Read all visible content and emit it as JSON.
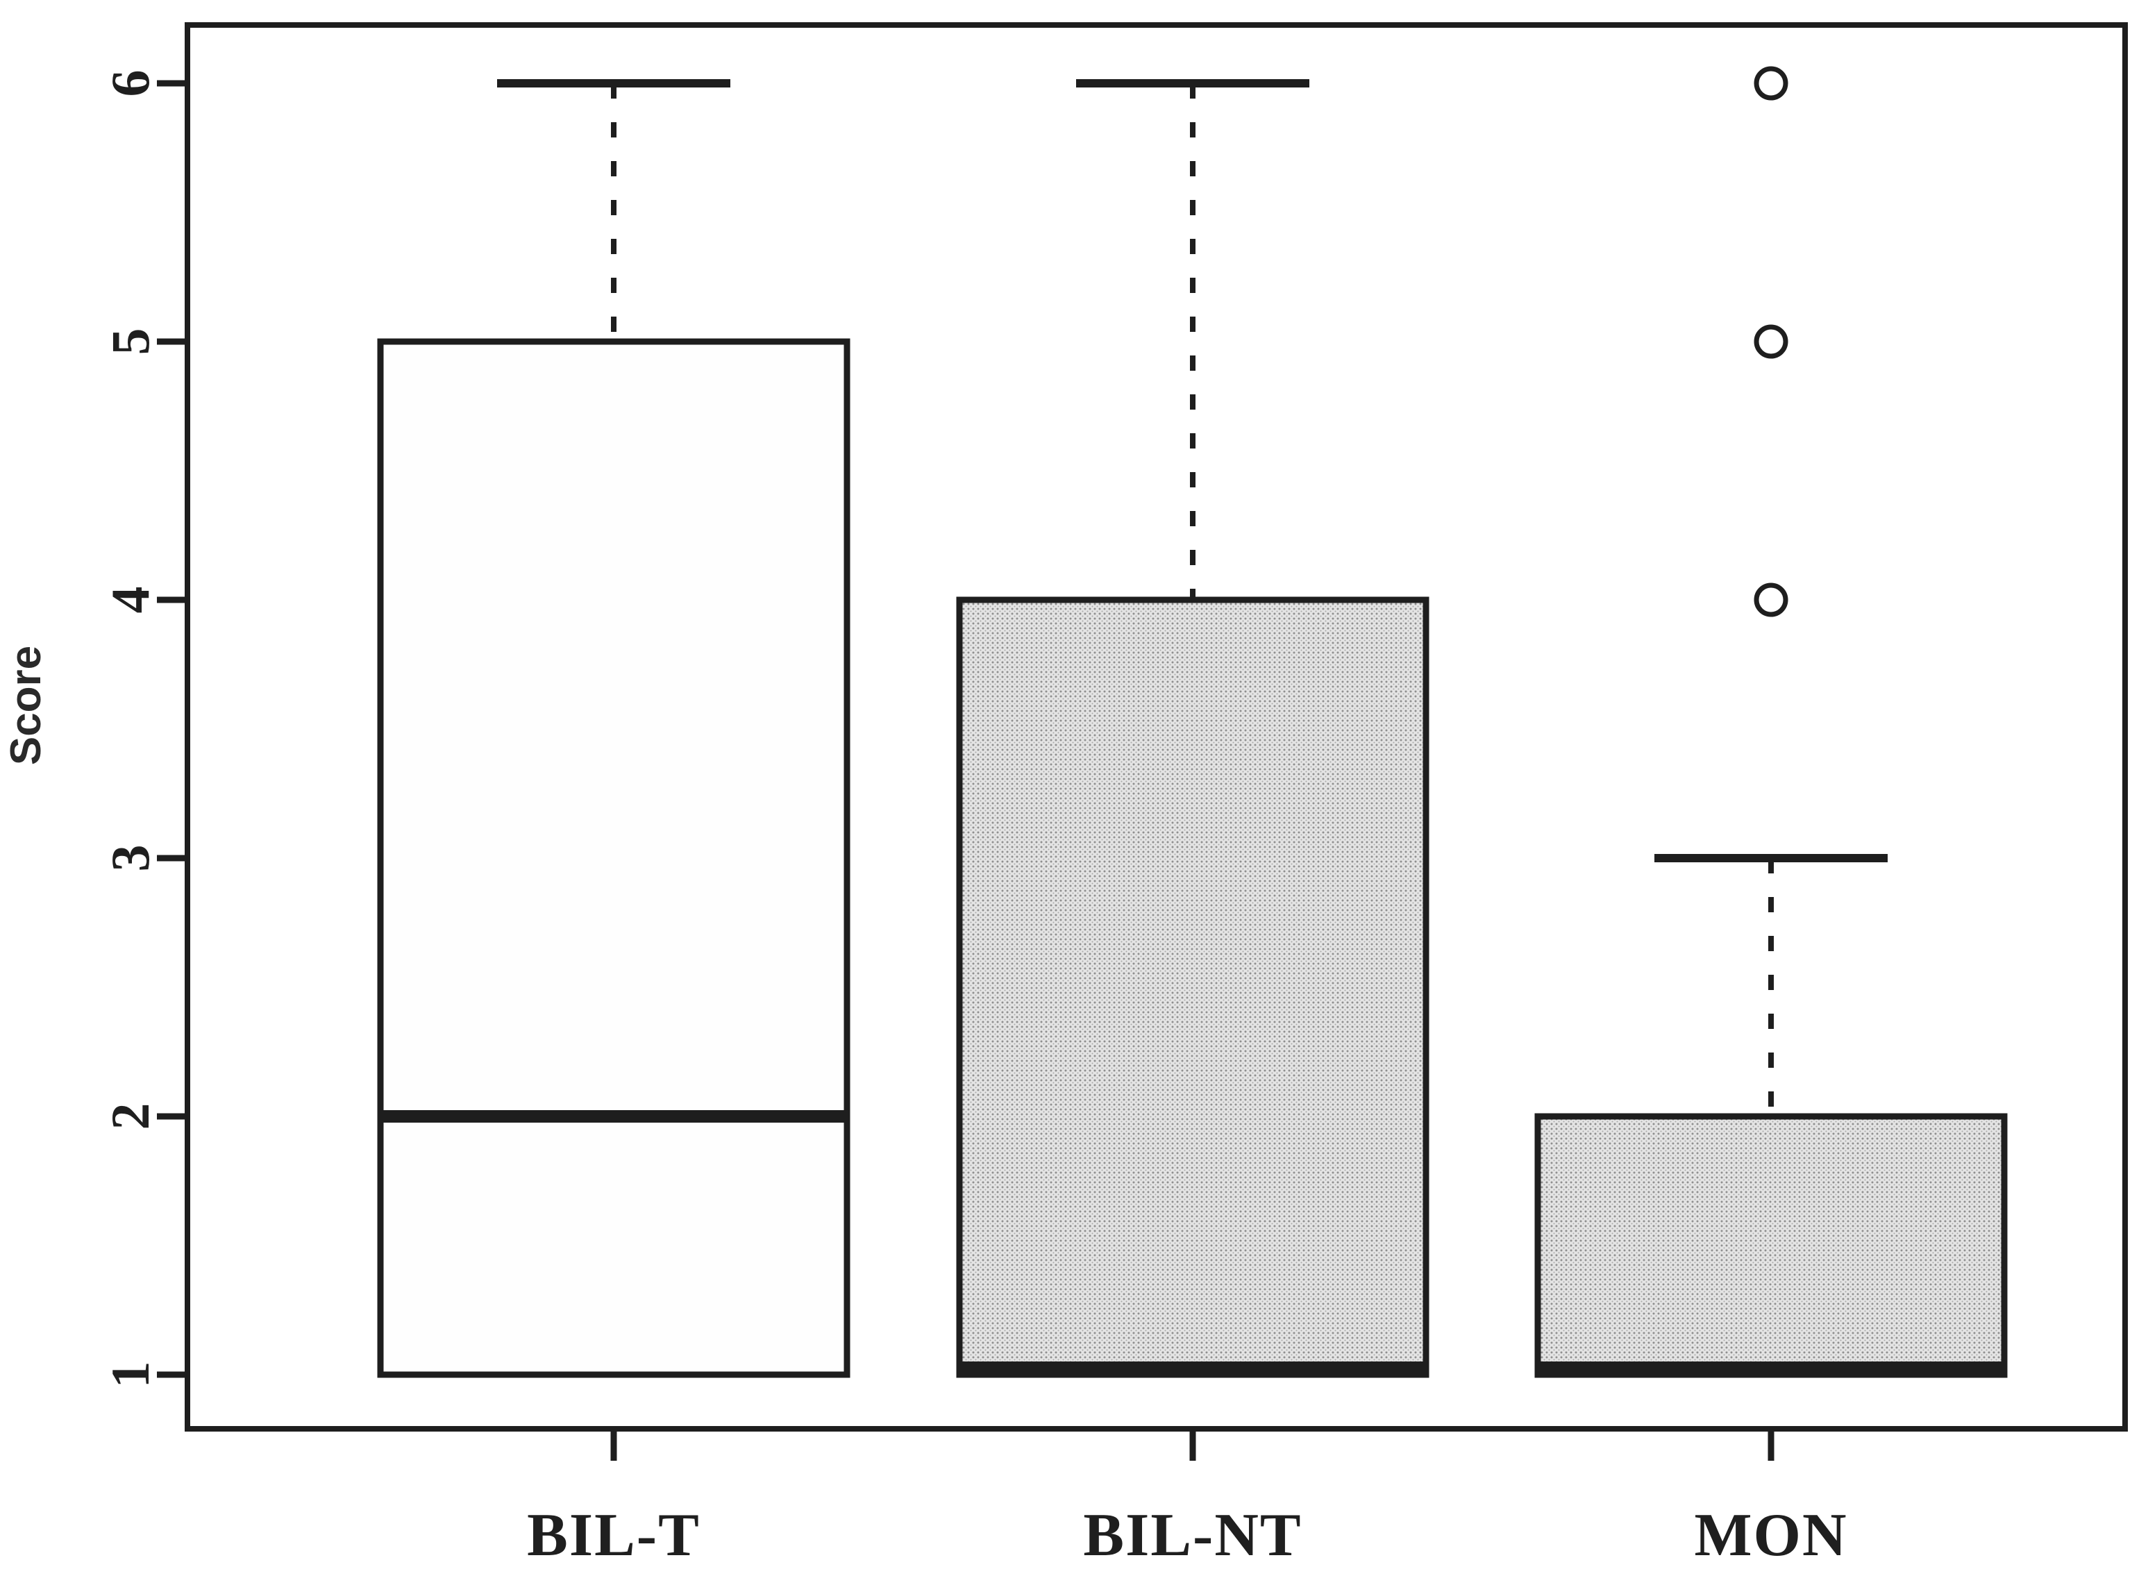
{
  "figure": {
    "background": "#ffffff",
    "line_color": "#1e1e1e",
    "gray_fill_base": "#e4e4e4",
    "gray_fill_dot": "#8f8f8f",
    "white_fill": "#fefefe"
  },
  "chart_data": {
    "type": "box",
    "title": "",
    "ylabel": "Score",
    "xlabel": "",
    "categories": [
      "BIL-T",
      "BIL-NT",
      "MON"
    ],
    "y_ticks": [
      1,
      2,
      3,
      4,
      5,
      6
    ],
    "ylim": [
      1,
      6
    ],
    "grid": false,
    "legend": "none",
    "box_style": "R-default, open whisker caps, dashed whiskers, hatched gray fill on BIL-NT and MON",
    "series": [
      {
        "name": "BIL-T",
        "q1": 1,
        "median": 2,
        "q3": 5,
        "whisker_low": 1,
        "whisker_high": 6,
        "outliers": [],
        "fill": "white"
      },
      {
        "name": "BIL-NT",
        "q1": 1,
        "median": 1,
        "q3": 4,
        "whisker_low": 1,
        "whisker_high": 6,
        "outliers": [],
        "fill": "gray"
      },
      {
        "name": "MON",
        "q1": 1,
        "median": 1,
        "q3": 2,
        "whisker_low": 1,
        "whisker_high": 3,
        "outliers": [
          4,
          5,
          6
        ],
        "fill": "gray"
      }
    ]
  }
}
